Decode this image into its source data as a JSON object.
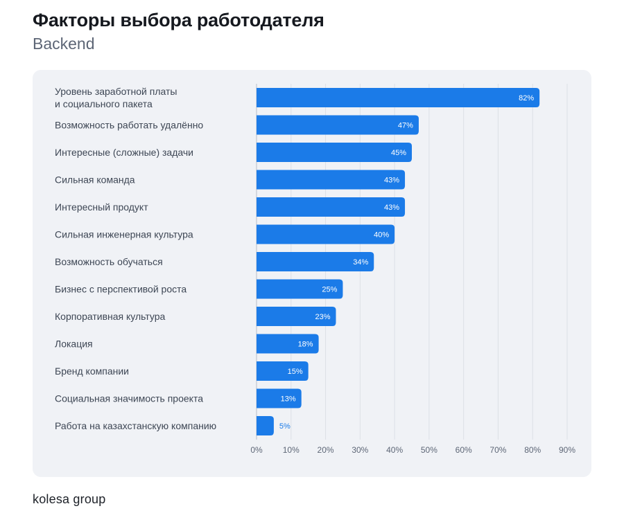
{
  "header": {
    "title": "Факторы выбора работодателя",
    "subtitle": "Backend"
  },
  "footer": {
    "logo": "kolesa group"
  },
  "colors": {
    "bar": "#1b7be8",
    "panel": "#f0f2f6",
    "label": "#3d4654",
    "tick": "#5d6676",
    "grid": "#dde0e6"
  },
  "chart_data": {
    "type": "bar",
    "orientation": "horizontal",
    "title": "Факторы выбора работодателя",
    "subtitle": "Backend",
    "categories": [
      [
        "Уровень заработной платы",
        "и социального пакета"
      ],
      [
        "Возможность работать удалённо"
      ],
      [
        "Интересные (сложные) задачи"
      ],
      [
        "Сильная команда"
      ],
      [
        "Интересный продукт"
      ],
      [
        "Сильная инженерная культура"
      ],
      [
        "Возможность обучаться"
      ],
      [
        "Бизнес с перспективой роста"
      ],
      [
        "Корпоративная культура"
      ],
      [
        "Локация"
      ],
      [
        "Бренд компании"
      ],
      [
        "Социальная значимость проекта"
      ],
      [
        "Работа на казахстанскую компанию"
      ]
    ],
    "values": [
      82,
      47,
      45,
      43,
      43,
      40,
      34,
      25,
      23,
      18,
      15,
      13,
      5
    ],
    "value_labels": [
      "82%",
      "47%",
      "45%",
      "43%",
      "43%",
      "40%",
      "34%",
      "25%",
      "23%",
      "18%",
      "15%",
      "13%",
      "5%"
    ],
    "xlim": [
      0,
      90
    ],
    "xticks": [
      "0%",
      "10%",
      "20%",
      "30%",
      "40%",
      "50%",
      "60%",
      "70%",
      "80%",
      "90%"
    ],
    "grid": true,
    "xlabel": "",
    "ylabel": ""
  }
}
